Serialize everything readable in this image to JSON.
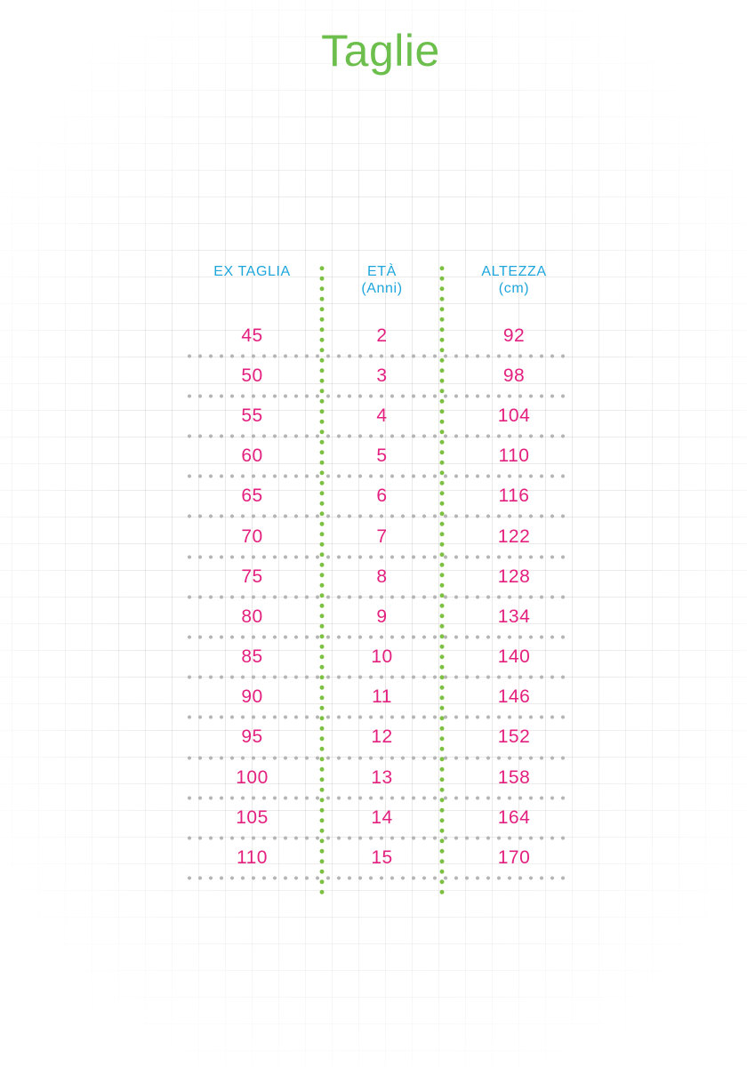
{
  "header": {
    "title": "Taglie"
  },
  "colors": {
    "title_green": "#6cbf4c",
    "column_separator_green": "#7cc142",
    "header_cyan": "#1ea6dc",
    "value_magenta": "#e3207f",
    "row_separator_gray": "#b5b5b5"
  },
  "chart_data": {
    "type": "table",
    "title": "Taglie",
    "columns": [
      {
        "label": "EX TAGLIA",
        "sublabel": ""
      },
      {
        "label": "ETÀ",
        "sublabel": "(Anni)"
      },
      {
        "label": "ALTEZZA",
        "sublabel": "(cm)"
      }
    ],
    "rows": [
      [
        "45",
        "2",
        "92"
      ],
      [
        "50",
        "3",
        "98"
      ],
      [
        "55",
        "4",
        "104"
      ],
      [
        "60",
        "5",
        "110"
      ],
      [
        "65",
        "6",
        "116"
      ],
      [
        "70",
        "7",
        "122"
      ],
      [
        "75",
        "8",
        "128"
      ],
      [
        "80",
        "9",
        "134"
      ],
      [
        "85",
        "10",
        "140"
      ],
      [
        "90",
        "11",
        "146"
      ],
      [
        "95",
        "12",
        "152"
      ],
      [
        "100",
        "13",
        "158"
      ],
      [
        "105",
        "14",
        "164"
      ],
      [
        "110",
        "15",
        "170"
      ]
    ],
    "layout": {
      "grid_background": true,
      "row_separator_style": "dotted-gray",
      "column_separator_style": "dotted-green"
    }
  }
}
